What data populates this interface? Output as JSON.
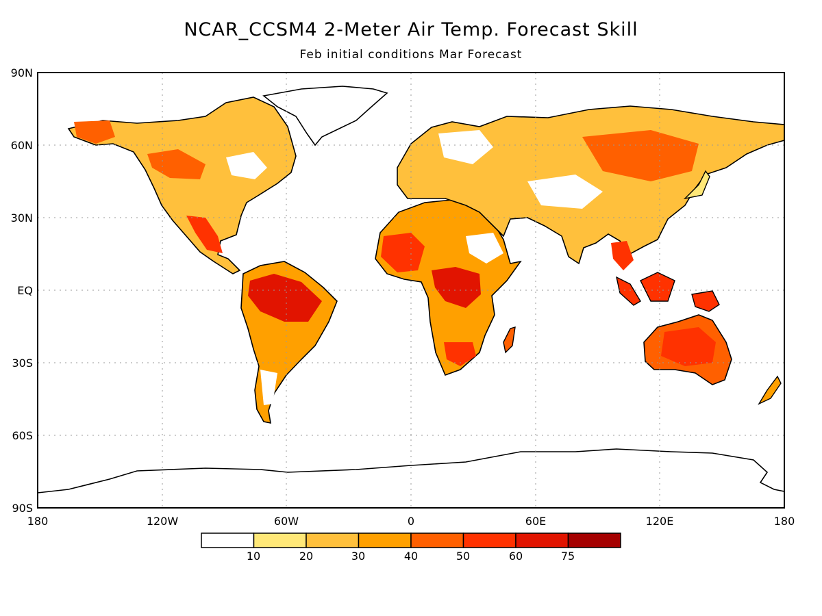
{
  "title": "NCAR_CCSM4 2-Meter Air Temp. Forecast Skill",
  "subtitle": "Feb initial conditions  Mar Forecast",
  "lat_labels": [
    "90N",
    "60N",
    "30N",
    "EQ",
    "30S",
    "60S",
    "90S"
  ],
  "lon_labels": [
    "180",
    "120W",
    "60W",
    "0",
    "60E",
    "120E",
    "180"
  ],
  "colorbar": {
    "labels": [
      "10",
      "20",
      "30",
      "40",
      "50",
      "60",
      "75"
    ],
    "colors": [
      "#ffffff",
      "#ffe878",
      "#ffc03c",
      "#ffa000",
      "#ff6000",
      "#ff3200",
      "#e11400",
      "#a50000"
    ]
  },
  "colors": {
    "land_skill_low": "#ffe878",
    "land_skill_mid": "#ffa000",
    "land_skill_high": "#e11400",
    "coastline": "#000000",
    "grid": "#999999"
  }
}
